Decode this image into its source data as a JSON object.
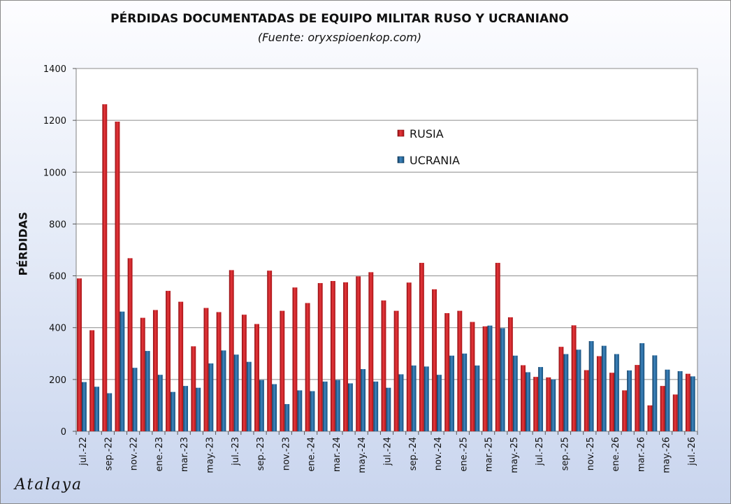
{
  "chart_data": {
    "type": "bar",
    "title": "PÉRDIDAS DOCUMENTADAS DE EQUIPO MILITAR RUSO Y UCRANIANO",
    "subtitle": "(Fuente: oryxspioenkop.com)",
    "xlabel": "",
    "ylabel": "PÉRDIDAS",
    "ylim": [
      0,
      1400
    ],
    "yticks": [
      0,
      200,
      400,
      600,
      800,
      1000,
      1200,
      1400
    ],
    "categories": [
      "jul.-22",
      "ago.-22",
      "sep.-22",
      "oct.-22",
      "nov.-22",
      "dic.-22",
      "ene.-23",
      "feb.-23",
      "mar.-23",
      "abr.-23",
      "may.-23",
      "jun.-23",
      "jul.-23",
      "ago.-23",
      "sep.-23",
      "oct.-23",
      "nov.-23",
      "dic.-23",
      "ene.-24",
      "feb.-24",
      "mar.-24",
      "abr.-24",
      "may.-24",
      "jun.-24",
      "jul.-24",
      "ago.-24",
      "sep.-24",
      "oct.-24",
      "nov.-24",
      "dic.-24",
      "ene.-25",
      "feb.-25",
      "mar.-25",
      "abr.-25",
      "may.-25",
      "jun.-25",
      "jul.-25",
      "ago.-25",
      "sep.-25",
      "oct.-25",
      "nov.-25",
      "dic.-25",
      "ene.-26",
      "feb.-26",
      "mar.-26",
      "abr.-26",
      "may.-26",
      "jun.-26",
      "jul.-26"
    ],
    "xtick_labels": [
      "jul.-22",
      "",
      "sep.-22",
      "",
      "nov.-22",
      "",
      "ene.-23",
      "",
      "mar.-23",
      "",
      "may.-23",
      "",
      "jul.-23",
      "",
      "sep.-23",
      "",
      "nov.-23",
      "",
      "ene.-24",
      "",
      "mar.-24",
      "",
      "may.-24",
      "",
      "jul.-24",
      "",
      "sep.-24",
      "",
      "nov.-24",
      "",
      "ene.-25",
      "",
      "mar.-25",
      "",
      "may.-25",
      "",
      "jul.-25",
      "",
      "sep.-25",
      "",
      "nov.-25",
      "",
      "ene.-26",
      "",
      "mar.-26",
      "",
      "may.-26",
      "",
      "jul.-26"
    ],
    "series": [
      {
        "name": "RUSIA",
        "color": "#c8161b",
        "values": [
          590,
          390,
          1262,
          1195,
          668,
          438,
          468,
          542,
          500,
          328,
          476,
          460,
          622,
          450,
          414,
          620,
          465,
          555,
          495,
          572,
          580,
          575,
          598,
          614,
          505,
          465,
          574,
          650,
          548,
          456,
          465,
          422,
          405,
          650,
          440,
          255,
          210,
          208,
          326,
          409,
          236,
          290,
          226,
          158,
          256,
          100,
          175,
          142,
          222
        ]
      },
      {
        "name": "UCRANIA",
        "color": "#1a5a8e",
        "values": [
          190,
          172,
          147,
          462,
          245,
          310,
          218,
          152,
          175,
          168,
          262,
          312,
          296,
          268,
          198,
          182,
          105,
          158,
          155,
          192,
          198,
          185,
          240,
          192,
          168,
          220,
          254,
          250,
          218,
          292,
          300,
          254,
          408,
          398,
          292,
          228,
          248,
          200,
          298,
          315,
          348,
          330,
          298,
          235,
          340,
          293,
          238,
          232,
          212
        ]
      }
    ],
    "grid": true,
    "legend_position": "top-center"
  },
  "watermark": "Atalaya"
}
